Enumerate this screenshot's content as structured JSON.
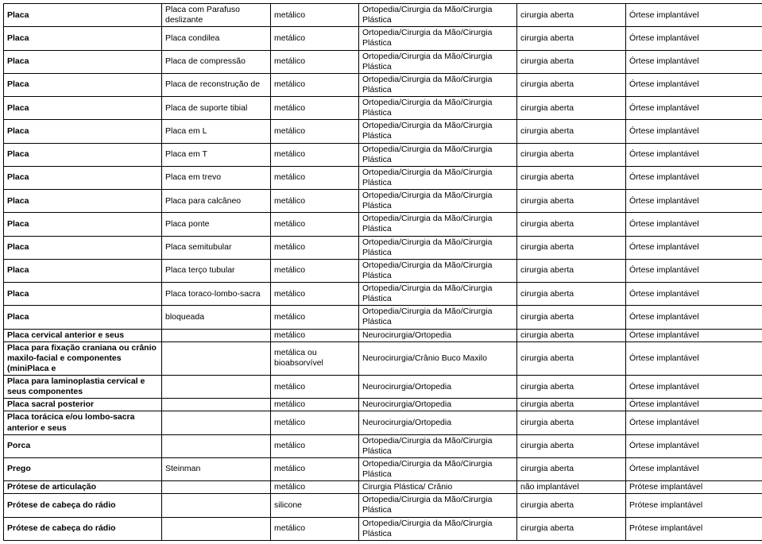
{
  "table": {
    "columns": [
      {
        "class": "c0",
        "bold": true
      },
      {
        "class": "c1"
      },
      {
        "class": "c2"
      },
      {
        "class": "c3"
      },
      {
        "class": "c4"
      },
      {
        "class": "c5"
      }
    ],
    "rows": [
      [
        "Placa",
        "Placa com Parafuso deslizante",
        "metálico",
        "Ortopedia/Cirurgia da Mão/Cirurgia Plástica",
        "cirurgia aberta",
        "Órtese implantável"
      ],
      [
        "Placa",
        "Placa condilea",
        "metálico",
        "Ortopedia/Cirurgia da Mão/Cirurgia Plástica",
        "cirurgia aberta",
        "Órtese implantável"
      ],
      [
        "Placa",
        "Placa de compressão",
        "metálico",
        "Ortopedia/Cirurgia da Mão/Cirurgia Plástica",
        "cirurgia aberta",
        "Órtese implantável"
      ],
      [
        "Placa",
        "Placa de reconstrução de",
        "metálico",
        "Ortopedia/Cirurgia da Mão/Cirurgia Plástica",
        "cirurgia aberta",
        "Órtese implantável"
      ],
      [
        "Placa",
        "Placa de suporte tibial",
        "metálico",
        "Ortopedia/Cirurgia da Mão/Cirurgia Plástica",
        "cirurgia aberta",
        "Órtese implantável"
      ],
      [
        "Placa",
        "Placa em L",
        "metálico",
        "Ortopedia/Cirurgia da Mão/Cirurgia Plástica",
        "cirurgia aberta",
        "Órtese implantável"
      ],
      [
        "Placa",
        "Placa em T",
        "metálico",
        "Ortopedia/Cirurgia da Mão/Cirurgia Plástica",
        "cirurgia aberta",
        "Órtese implantável"
      ],
      [
        "Placa",
        "Placa em trevo",
        "metálico",
        "Ortopedia/Cirurgia da Mão/Cirurgia Plástica",
        "cirurgia aberta",
        "Órtese implantável"
      ],
      [
        "Placa",
        "Placa para calcâneo",
        "metálico",
        "Ortopedia/Cirurgia da Mão/Cirurgia Plástica",
        "cirurgia aberta",
        "Órtese implantável"
      ],
      [
        "Placa",
        "Placa ponte",
        "metálico",
        "Ortopedia/Cirurgia da Mão/Cirurgia Plástica",
        "cirurgia aberta",
        "Órtese implantável"
      ],
      [
        "Placa",
        "Placa semitubular",
        "metálico",
        "Ortopedia/Cirurgia da Mão/Cirurgia Plástica",
        "cirurgia aberta",
        "Órtese implantável"
      ],
      [
        "Placa",
        "Placa terço tubular",
        "metálico",
        "Ortopedia/Cirurgia da Mão/Cirurgia Plástica",
        "cirurgia aberta",
        "Órtese implantável"
      ],
      [
        "Placa",
        "Placa toraco-lombo-sacra",
        "metálico",
        "Ortopedia/Cirurgia da Mão/Cirurgia Plástica",
        "cirurgia aberta",
        "Órtese implantável"
      ],
      [
        "Placa",
        "bloqueada",
        "metálico",
        "Ortopedia/Cirurgia da Mão/Cirurgia Plástica",
        "cirurgia aberta",
        "Órtese implantável"
      ],
      [
        "Placa cervical anterior e seus",
        "",
        "metálico",
        "Neurocirurgia/Ortopedia",
        "cirurgia aberta",
        "Órtese implantável"
      ],
      [
        "Placa para fixação craniana ou crânio maxilo-facial e componentes (miniPlaca e",
        "",
        "metálica ou bioabsorvível",
        "Neurocirurgia/Crânio Buco Maxilo",
        "cirurgia aberta",
        "Órtese implantável"
      ],
      [
        "Placa para laminoplastia cervical e seus componentes",
        "",
        "metálico",
        "Neurocirurgia/Ortopedia",
        "cirurgia aberta",
        "Órtese implantável"
      ],
      [
        "Placa sacral posterior",
        "",
        "metálico",
        "Neurocirurgia/Ortopedia",
        "cirurgia aberta",
        "Órtese implantável"
      ],
      [
        "Placa torácica e/ou lombo-sacra anterior e seus",
        "",
        "metálico",
        "Neurocirurgia/Ortopedia",
        "cirurgia aberta",
        "Órtese implantável"
      ],
      [
        "Porca",
        "",
        "metálico",
        "Ortopedia/Cirurgia da Mão/Cirurgia Plástica",
        "cirurgia aberta",
        "Órtese implantável"
      ],
      [
        "Prego",
        "Steinman",
        "metálico",
        "Ortopedia/Cirurgia da Mão/Cirurgia Plástica",
        "cirurgia aberta",
        "Órtese implantável"
      ],
      [
        "Prótese de articulação",
        "",
        "metálico",
        "Cirurgia Plástica/ Crânio",
        "não implantável",
        "Prótese implantável"
      ],
      [
        "Prótese de cabeça do rádio",
        "",
        "silicone",
        "Ortopedia/Cirurgia da Mão/Cirurgia Plástica",
        "cirurgia aberta",
        "Prótese implantável"
      ],
      [
        "Prótese de cabeça do rádio",
        "",
        "metálico",
        "Ortopedia/Cirurgia da Mão/Cirurgia Plástica",
        "cirurgia aberta",
        "Prótese implantável"
      ]
    ]
  }
}
